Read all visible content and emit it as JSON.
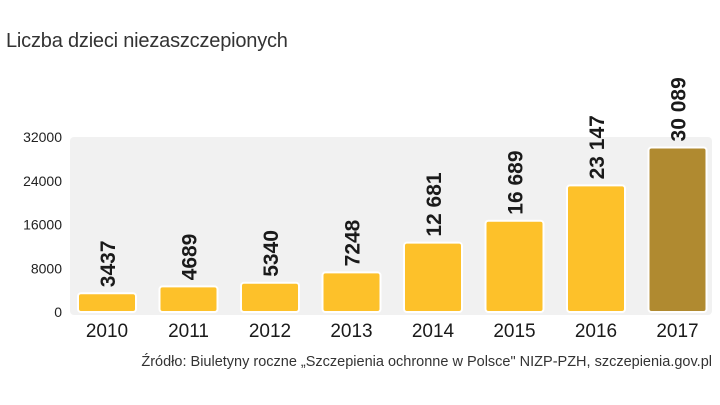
{
  "chart_data": {
    "type": "bar",
    "title": "Liczba dzieci niezaszczepionych",
    "categories": [
      "2010",
      "2011",
      "2012",
      "2013",
      "2014",
      "2015",
      "2016",
      "2017"
    ],
    "values": [
      3437,
      4689,
      5340,
      7248,
      12681,
      16689,
      23147,
      30089
    ],
    "value_labels": [
      "3437",
      "4689",
      "5340",
      "7248",
      "12 681",
      "16 689",
      "23 147",
      "30 089"
    ],
    "y_ticks": [
      "0",
      "8000",
      "16000",
      "24000",
      "32000"
    ],
    "ylim": [
      0,
      32000
    ],
    "xlabel": "",
    "ylabel": "",
    "grid": false,
    "source": "Źródło: Biuletyny roczne „Szczepienia ochronne w Polsce\" NIZP-PZH, szczepienia.gov.pl",
    "colors": {
      "bar": "#FDC12A",
      "bar_highlight": "#B08A30",
      "plot_background": "#F1F1F1",
      "text": "#1a1a1a"
    }
  }
}
